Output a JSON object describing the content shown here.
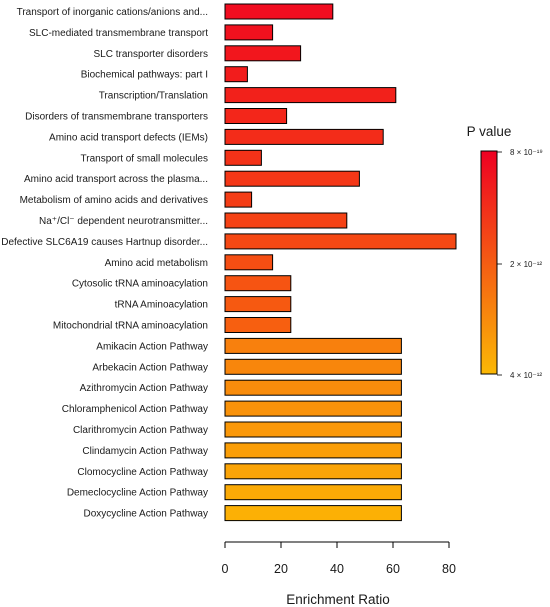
{
  "chart_data": {
    "type": "bar",
    "orientation": "horizontal",
    "categories": [
      "Transport of inorganic cations/anions and...",
      "SLC-mediated transmembrane transport",
      "SLC transporter disorders",
      "Biochemical pathways: part I",
      "Transcription/Translation",
      "Disorders of transmembrane transporters",
      "Amino acid transport defects (IEMs)",
      "Transport of small molecules",
      "Amino acid transport across the plasma...",
      "Metabolism of amino acids and derivatives",
      "Na⁺/Cl⁻ dependent neurotransmitter...",
      "Defective SLC6A19 causes Hartnup disorder...",
      "Amino acid metabolism",
      "Cytosolic tRNA aminoacylation",
      "tRNA Aminoacylation",
      "Mitochondrial tRNA aminoacylation",
      "Amikacin Action Pathway",
      "Arbekacin Action Pathway",
      "Azithromycin Action Pathway",
      "Chloramphenicol Action Pathway",
      "Clarithromycin Action Pathway",
      "Clindamycin Action Pathway",
      "Clomocycline Action Pathway",
      "Demeclocycline Action Pathway",
      "Doxycycline Action Pathway"
    ],
    "values": [
      38.5,
      17,
      27,
      8,
      61,
      22,
      56.5,
      13,
      48,
      9.5,
      43.5,
      82.5,
      17,
      23.5,
      23.5,
      23.5,
      63,
      63,
      63,
      63,
      63,
      63,
      63,
      63,
      63
    ],
    "bar_colors": [
      "#f10d20",
      "#f1111e",
      "#f2161d",
      "#f21c1c",
      "#f2211b",
      "#f3261a",
      "#f32c19",
      "#f33218",
      "#f43717",
      "#f43d16",
      "#f54215",
      "#f54814",
      "#f54e13",
      "#f65412",
      "#f65911",
      "#f75f10",
      "#f8800d",
      "#f8860c",
      "#f98c0b",
      "#f9920a",
      "#fa9809",
      "#fa9e08",
      "#fba407",
      "#fbaa06",
      "#fcb005"
    ],
    "xlabel": "Enrichment Ratio",
    "xlim": [
      0,
      85
    ],
    "xticks": [
      0,
      20,
      40,
      60,
      80
    ],
    "grid": false,
    "legend": {
      "title": "P value",
      "placement": "right",
      "color_top": "#ee0022",
      "color_bottom": "#fbb805",
      "ticks": [
        "8 × 10⁻¹⁹",
        "2 × 10⁻¹²",
        "4 × 10⁻¹²"
      ]
    }
  }
}
